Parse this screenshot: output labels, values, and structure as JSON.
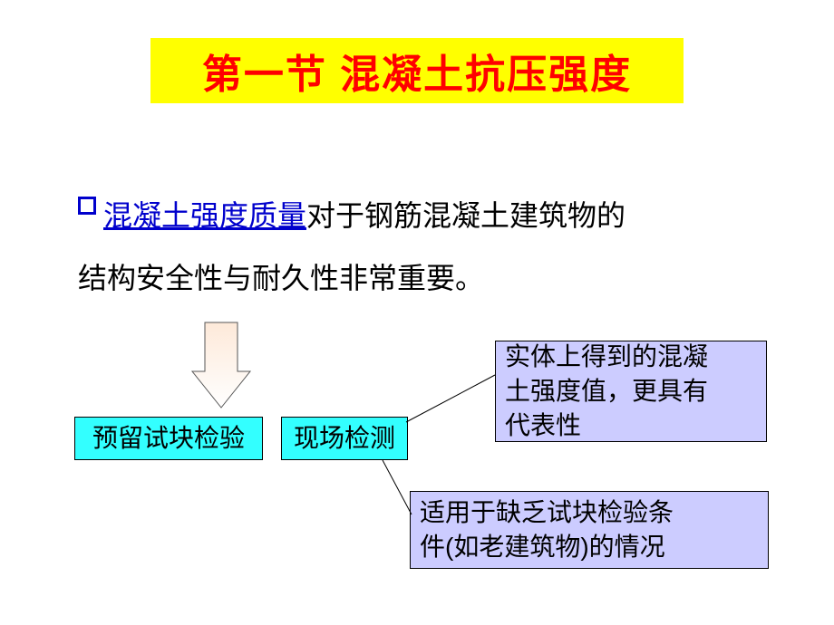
{
  "title": {
    "text": "第一节 混凝土抗压强度",
    "bg": "#ffff00",
    "color": "#ff0000",
    "fontsize": 44
  },
  "paragraph": {
    "link_text": "混凝土强度质量",
    "link_color": "#0000cc",
    "rest_line1": "对于钢筋混凝土建筑物的",
    "line2": "结构安全性与耐久性非常重要。",
    "rest_color": "#000000",
    "fontsize": 32,
    "bullet_fill": "#ffffff",
    "bullet_stroke": "#0000cc",
    "bullet_size": 20
  },
  "arrow": {
    "fill_top": "#fde9d9",
    "fill_bottom": "#ffffff",
    "stroke": "#555555",
    "stroke_width": 1
  },
  "boxes": {
    "left": {
      "label": "预留试块检验"
    },
    "mid": {
      "label": "现场检测"
    },
    "right_top": {
      "line1": "实体上得到的混凝",
      "line2": "土强度值，更具有",
      "line3": "代表性"
    },
    "right_bottom": {
      "line1": "适用于缺乏试块检验条",
      "line2": "件(如老建筑物)的情况"
    },
    "bg_cyan": "#33ffff",
    "bg_lav": "#ccccff",
    "border": "#000000",
    "text": "#000000",
    "fontsize": 28
  },
  "connectors": {
    "stroke": "#000000",
    "width": 1
  }
}
